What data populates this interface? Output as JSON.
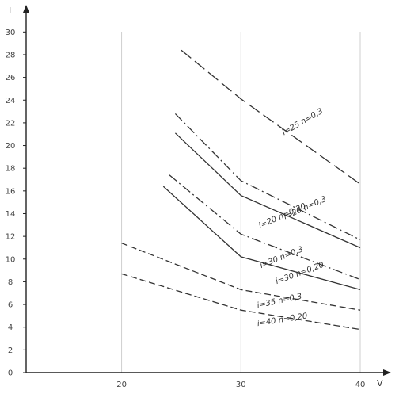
{
  "chart_data": {
    "type": "line",
    "title": "",
    "xlabel": "V",
    "ylabel": "L",
    "xlim": [
      12,
      40
    ],
    "ylim": [
      0,
      31
    ],
    "x_ticks": [
      20,
      30,
      40
    ],
    "y_ticks": [
      0,
      2,
      4,
      6,
      8,
      10,
      12,
      14,
      16,
      18,
      20,
      22,
      24,
      26,
      28,
      30
    ],
    "grid": true,
    "series": [
      {
        "name": "i=25 n=0,3",
        "dash": "long",
        "x": [
          25,
          30,
          40
        ],
        "y": [
          28.4,
          24.1,
          16.6
        ],
        "label_at": [
          33.6,
          20.9
        ],
        "label_angle": -30
      },
      {
        "name": "i=20 n=0,3",
        "dash": "dashdot",
        "x": [
          24.5,
          30,
          40
        ],
        "y": [
          22.8,
          16.9,
          11.7
        ],
        "label_at": [
          33.7,
          13.5
        ],
        "label_angle": -24
      },
      {
        "name": "i=20 n=0,20",
        "dash": "solid",
        "x": [
          24.5,
          30,
          40
        ],
        "y": [
          21.1,
          15.6,
          11.0
        ],
        "label_at": [
          31.6,
          12.7
        ],
        "label_angle": -24
      },
      {
        "name": "i=30 n=0,3",
        "dash": "dashdot",
        "x": [
          24,
          30,
          40
        ],
        "y": [
          17.4,
          12.2,
          8.2
        ],
        "label_at": [
          31.7,
          9.2
        ],
        "label_angle": -22
      },
      {
        "name": "i=30 n=0,20",
        "dash": "solid",
        "x": [
          23.5,
          30,
          40
        ],
        "y": [
          16.4,
          10.2,
          7.3
        ],
        "label_at": [
          33.0,
          7.8
        ],
        "label_angle": -20
      },
      {
        "name": "i=35 n=0,3",
        "dash": "dashed",
        "x": [
          20,
          30,
          40
        ],
        "y": [
          11.4,
          7.3,
          5.5
        ],
        "label_at": [
          31.4,
          5.7
        ],
        "label_angle": -12
      },
      {
        "name": "i=40 n=0,20",
        "dash": "dashed",
        "x": [
          20,
          30,
          40
        ],
        "y": [
          8.7,
          5.5,
          3.8
        ],
        "label_at": [
          31.4,
          4.1
        ],
        "label_angle": -9
      }
    ]
  }
}
